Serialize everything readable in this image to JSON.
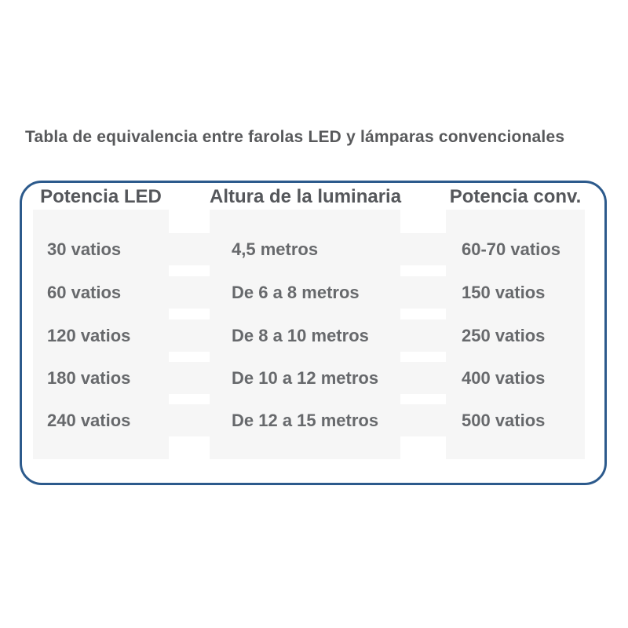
{
  "title": "Tabla de equivalencia entre farolas LED y lámparas convencionales",
  "table": {
    "headers": [
      "Potencia LED",
      "Altura de la luminaria",
      "Potencia conv."
    ],
    "rows": [
      {
        "led": "30 vatios",
        "altura": "4,5 metros",
        "conv": "60-70 vatios"
      },
      {
        "led": "60 vatios",
        "altura": "De 6 a 8 metros",
        "conv": "150 vatios"
      },
      {
        "led": "120 vatios",
        "altura": "De 8 a 10 metros",
        "conv": "250 vatios"
      },
      {
        "led": "180 vatios",
        "altura": "De 10 a 12 metros",
        "conv": "400 vatios"
      },
      {
        "led": "240 vatios",
        "altura": "De 12 a 15 metros",
        "conv": "500 vatios"
      }
    ]
  },
  "colors": {
    "panel_border_blue": "#2c5a8c",
    "cell_gray": "#f6f6f6",
    "title_text": "#58595b",
    "header_text": "#55575b",
    "value_text": "#67696c",
    "background": "#ffffff"
  },
  "chart_data": {
    "type": "table",
    "title": "Tabla de equivalencia entre farolas LED y lámparas convencionales",
    "columns": [
      "Potencia LED",
      "Altura de la luminaria",
      "Potencia conv."
    ],
    "rows": [
      [
        "30 vatios",
        "4,5 metros",
        "60-70 vatios"
      ],
      [
        "60 vatios",
        "De 6 a 8 metros",
        "150 vatios"
      ],
      [
        "120 vatios",
        "De 8 a 10 metros",
        "250 vatios"
      ],
      [
        "180 vatios",
        "De 10 a 12 metros",
        "400 vatios"
      ],
      [
        "240 vatios",
        "De 12 a 15 metros",
        "500 vatios"
      ]
    ],
    "layout_hints": {
      "column_backgrounds": "light gray blocks separated by white gutters",
      "row_separators": "white gaps visible only in column gutters",
      "border": "rounded rectangle, dark blue"
    }
  }
}
